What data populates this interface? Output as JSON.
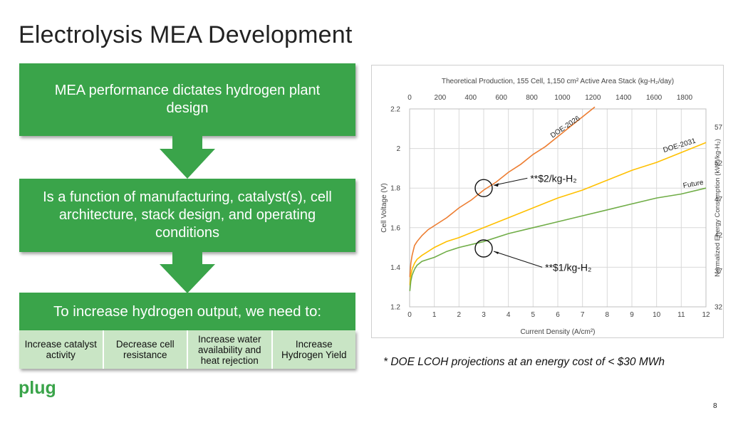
{
  "slide": {
    "title": "Electrolysis MEA Development",
    "page_number": "8",
    "footnote": "* DOE LCOH projections at an energy cost of < $30 MWh",
    "logo_text": "plug",
    "colors": {
      "green": "#3aa44a",
      "light_green": "#c9e5c5"
    }
  },
  "flow": {
    "box1": "MEA performance dictates hydrogen plant design",
    "box2": "Is a function of manufacturing, catalyst(s), cell architecture, stack design, and operating conditions",
    "box3": "To increase hydrogen output, we need to:",
    "items": [
      "Increase catalyst activity",
      "Decrease cell resistance",
      "Increase water availability and heat rejection",
      "Increase Hydrogen Yield"
    ]
  },
  "chart_data": {
    "type": "line",
    "title": "Theoretical Production, 155 Cell, 1,150 cm² Active Area Stack (kg-H₂/day)",
    "xlabel": "Current Density (A/cm²)",
    "ylabel": "Cell Voltage (V)",
    "y2label": "Normalized Energy Consumption (kWh/kg-H₂)",
    "xlim": [
      0,
      12
    ],
    "ylim": [
      1.2,
      2.2
    ],
    "x_ticks": [
      0,
      1,
      2,
      3,
      4,
      5,
      6,
      7,
      8,
      9,
      10,
      11,
      12
    ],
    "y_ticks": [
      1.2,
      1.4,
      1.6,
      1.8,
      2.0,
      2.2
    ],
    "y_tick_labels": [
      "1.2",
      "1.4",
      "1.6",
      "1.8",
      "2",
      "2.2"
    ],
    "x2_ticks": [
      0,
      200,
      400,
      600,
      800,
      1000,
      1200,
      1400,
      1600,
      1800
    ],
    "y2_ticks": [
      32,
      37,
      42,
      47,
      52,
      57
    ],
    "grid": true,
    "series": [
      {
        "name": "DOE-2026",
        "color": "#ed7d31",
        "x": [
          0.01,
          0.05,
          0.1,
          0.2,
          0.3,
          0.5,
          0.75,
          1,
          1.5,
          2,
          2.5,
          3,
          3.5,
          4,
          4.5,
          5,
          5.5,
          6,
          6.5,
          7,
          7.5
        ],
        "y": [
          1.35,
          1.42,
          1.46,
          1.51,
          1.53,
          1.56,
          1.59,
          1.61,
          1.65,
          1.7,
          1.74,
          1.79,
          1.83,
          1.88,
          1.92,
          1.97,
          2.01,
          2.06,
          2.11,
          2.16,
          2.21
        ]
      },
      {
        "name": "DOE-2031",
        "color": "#ffc000",
        "x": [
          0.01,
          0.05,
          0.1,
          0.2,
          0.3,
          0.5,
          0.75,
          1,
          1.5,
          2,
          3,
          4,
          5,
          6,
          7,
          8,
          9,
          10,
          11,
          12
        ],
        "y": [
          1.31,
          1.36,
          1.39,
          1.42,
          1.44,
          1.46,
          1.48,
          1.5,
          1.53,
          1.55,
          1.6,
          1.65,
          1.7,
          1.75,
          1.79,
          1.84,
          1.89,
          1.93,
          1.98,
          2.03
        ]
      },
      {
        "name": "Future",
        "color": "#70ad47",
        "x": [
          0.01,
          0.05,
          0.1,
          0.2,
          0.3,
          0.5,
          0.75,
          1,
          1.5,
          2,
          3,
          4,
          5,
          6,
          7,
          8,
          9,
          10,
          11,
          12
        ],
        "y": [
          1.28,
          1.33,
          1.36,
          1.39,
          1.41,
          1.43,
          1.44,
          1.45,
          1.48,
          1.5,
          1.53,
          1.57,
          1.6,
          1.63,
          1.66,
          1.69,
          1.72,
          1.75,
          1.77,
          1.8
        ]
      }
    ],
    "annotations": [
      {
        "text": "**$2/kg-H₂",
        "x": 3,
        "y": 1.8,
        "label_x": 5.0,
        "label_y": 1.85
      },
      {
        "text": "**$1/kg-H₂",
        "x": 3,
        "y": 1.495,
        "label_x": 5.6,
        "label_y": 1.4
      }
    ]
  }
}
